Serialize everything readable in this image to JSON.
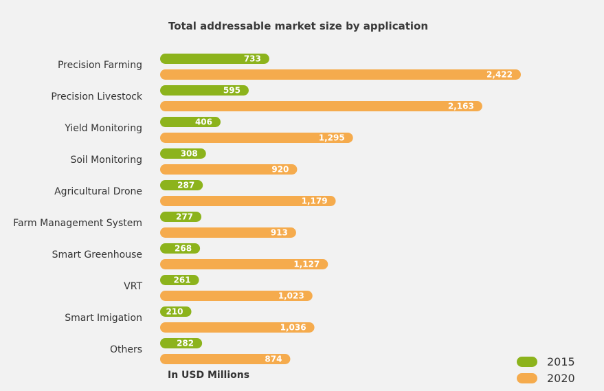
{
  "chart_data": {
    "type": "bar",
    "orientation": "horizontal",
    "title": "Total addressable market size by application",
    "unit_label": "In USD Millions",
    "categories": [
      "Precision Farming",
      "Precision Livestock",
      "Yield Monitoring",
      "Soil Monitoring",
      "Agricultural Drone",
      "Farm Management System",
      "Smart Greenhouse",
      "VRT",
      "Smart Imigation",
      "Others"
    ],
    "series": [
      {
        "name": "2015",
        "color": "#8cb31c",
        "values": [
          733,
          595,
          406,
          308,
          287,
          277,
          268,
          261,
          210,
          282
        ],
        "labels": [
          "733",
          "595",
          "406",
          "308",
          "287",
          "277",
          "268",
          "261",
          "210",
          "282"
        ]
      },
      {
        "name": "2020",
        "color": "#f5ab4d",
        "values": [
          2422,
          2163,
          1295,
          920,
          1179,
          913,
          1127,
          1023,
          1036,
          874
        ],
        "labels": [
          "2,422",
          "2,163",
          "1,295",
          "920",
          "1,179",
          "913",
          "1,127",
          "1,023",
          "1,036",
          "874"
        ]
      }
    ],
    "xlim": [
      0,
      2422
    ],
    "grid": false,
    "legend_position": "bottom-right"
  }
}
